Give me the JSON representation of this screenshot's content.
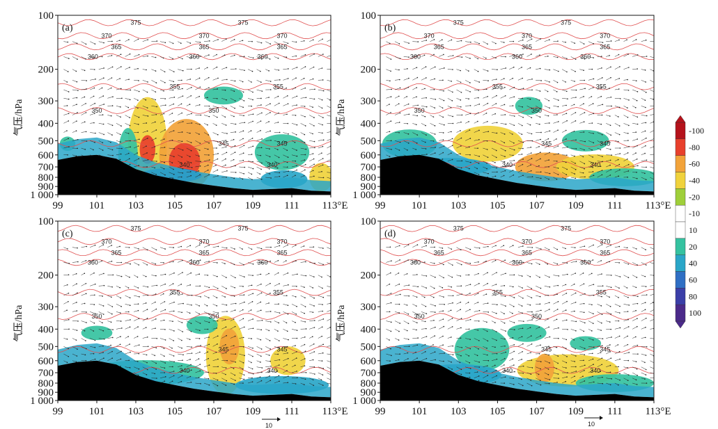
{
  "chart_data": [
    {
      "type": "contour",
      "panel": "(a)",
      "x_ticks": [
        "99",
        "101",
        "103",
        "105",
        "107",
        "109",
        "111",
        "113°E"
      ],
      "y_ticks": [
        "100",
        "200",
        "300",
        "400",
        "500",
        "600",
        "700",
        "800",
        "900",
        "1 000"
      ],
      "ylabel": "气压/hPa",
      "xlim": [
        99,
        113
      ],
      "ylim": [
        1000,
        100
      ],
      "theta_labels": [
        "375",
        "370",
        "365",
        "360",
        "355",
        "350",
        "345",
        "340"
      ]
    },
    {
      "type": "contour",
      "panel": "(b)",
      "x_ticks": [
        "99",
        "101",
        "103",
        "105",
        "107",
        "109",
        "111",
        "113°E"
      ],
      "y_ticks": [
        "100",
        "200",
        "300",
        "400",
        "500",
        "600",
        "700",
        "800",
        "900",
        "1 000"
      ],
      "ylabel": "气压/hPa",
      "xlim": [
        99,
        113
      ],
      "ylim": [
        1000,
        100
      ],
      "theta_labels": [
        "375",
        "370",
        "365",
        "360",
        "355",
        "350",
        "345",
        "340"
      ]
    },
    {
      "type": "contour",
      "panel": "(c)",
      "x_ticks": [
        "99",
        "101",
        "103",
        "105",
        "107",
        "109",
        "111",
        "113°E"
      ],
      "y_ticks": [
        "100",
        "200",
        "300",
        "400",
        "500",
        "600",
        "700",
        "800",
        "900",
        "1 000"
      ],
      "ylabel": "气压/hPa",
      "xlim": [
        99,
        113
      ],
      "ylim": [
        1000,
        100
      ],
      "theta_labels": [
        "375",
        "370",
        "365",
        "360",
        "355",
        "350",
        "345",
        "340"
      ]
    },
    {
      "type": "contour",
      "panel": "(d)",
      "x_ticks": [
        "99",
        "101",
        "103",
        "105",
        "107",
        "109",
        "111",
        "113°E"
      ],
      "y_ticks": [
        "100",
        "200",
        "300",
        "400",
        "500",
        "600",
        "700",
        "800",
        "900",
        "1 000"
      ],
      "ylabel": "气压/hPa",
      "xlim": [
        99,
        113
      ],
      "ylim": [
        1000,
        100
      ],
      "theta_labels": [
        "375",
        "370",
        "365",
        "360",
        "355",
        "350",
        "345",
        "340"
      ]
    }
  ],
  "colorbar": {
    "labels": [
      "-100",
      "-80",
      "-60",
      "-40",
      "-20",
      "-10",
      "10",
      "20",
      "40",
      "60",
      "80",
      "100"
    ],
    "colors": [
      "#4b2a8a",
      "#3b3fa8",
      "#2f6fc4",
      "#2aa6c8",
      "#35c2a0",
      "#ffffff",
      "#ffffff",
      "#9fcf3a",
      "#f0d23c",
      "#f2a33a",
      "#e8402c",
      "#b5121b"
    ]
  },
  "reference_vector": {
    "label": "10"
  },
  "colors": {
    "terrain": "#000000",
    "theta_contour": "#e05050",
    "wind": "#222222"
  }
}
